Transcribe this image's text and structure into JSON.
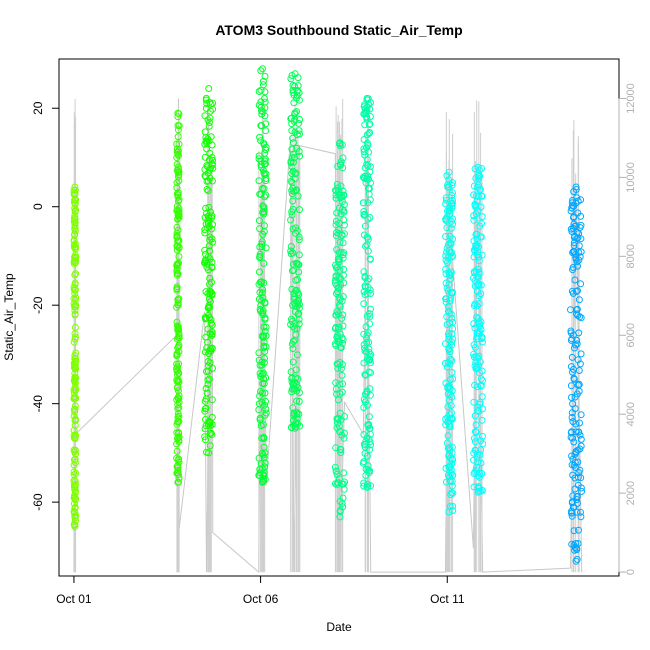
{
  "chart_data": {
    "type": "scatter",
    "title": "ATOM3 Southbound Static_Air_Temp",
    "xlabel": "Date",
    "ylabel": "Static_Air_Temp",
    "x_ticks": [
      "Oct 01",
      "Oct 06",
      "Oct 11"
    ],
    "x_tick_days": [
      1,
      6,
      11
    ],
    "xlim": [
      0.6,
      15.6
    ],
    "ylim": [
      -75,
      30
    ],
    "y_ticks": [
      -60,
      -40,
      -20,
      0,
      20
    ],
    "y2_ticks": [
      0,
      2000,
      4000,
      6000,
      8000,
      10000,
      12000
    ],
    "y2lim": [
      -100,
      13000
    ],
    "grid": false,
    "legend": "none",
    "series": [
      {
        "day_start": 1.0,
        "day_end": 1.05,
        "y_min": -65,
        "y_max": 4,
        "color": "#7fff00"
      },
      {
        "day_start": 3.75,
        "day_end": 3.82,
        "y_min": -56,
        "y_max": 19,
        "color": "#33ff00"
      },
      {
        "day_start": 4.5,
        "day_end": 4.72,
        "y_min": -50,
        "y_max": 24,
        "color": "#11ff00"
      },
      {
        "day_start": 5.95,
        "day_end": 6.15,
        "y_min": -56,
        "y_max": 28,
        "color": "#00ff33"
      },
      {
        "day_start": 6.8,
        "day_end": 7.05,
        "y_min": -45,
        "y_max": 27,
        "color": "#00ff55"
      },
      {
        "day_start": 8.0,
        "day_end": 8.25,
        "y_min": -63,
        "y_max": 13,
        "color": "#00ff88"
      },
      {
        "day_start": 8.75,
        "day_end": 8.95,
        "y_min": -57,
        "y_max": 22,
        "color": "#00ffaa"
      },
      {
        "day_start": 10.95,
        "day_end": 11.15,
        "y_min": -62,
        "y_max": 7,
        "color": "#00ffee"
      },
      {
        "day_start": 11.7,
        "day_end": 11.95,
        "y_min": -58,
        "y_max": 8,
        "color": "#00ffff"
      },
      {
        "day_start": 14.3,
        "day_end": 14.6,
        "y_min": -72,
        "y_max": 4,
        "color": "#00a8ff"
      }
    ],
    "altitude_trace": {
      "axis": "right",
      "color": "#c8c8c8",
      "points": [
        [
          1.0,
          0
        ],
        [
          1.02,
          11500
        ],
        [
          1.05,
          3500
        ],
        [
          3.75,
          6000
        ],
        [
          3.8,
          12000
        ],
        [
          3.82,
          1100
        ],
        [
          4.5,
          6600
        ],
        [
          4.55,
          0
        ],
        [
          4.7,
          10500
        ],
        [
          4.72,
          1000
        ],
        [
          5.95,
          0
        ],
        [
          6.05,
          11800
        ],
        [
          6.15,
          2200
        ],
        [
          6.8,
          11000
        ],
        [
          6.9,
          0
        ],
        [
          7.05,
          10800
        ],
        [
          8.0,
          10600
        ],
        [
          8.1,
          0
        ],
        [
          8.25,
          4300
        ],
        [
          8.75,
          3500
        ],
        [
          8.85,
          10200
        ],
        [
          8.95,
          0
        ],
        [
          10.95,
          0
        ],
        [
          11.05,
          9000
        ],
        [
          11.15,
          7800
        ],
        [
          11.7,
          600
        ],
        [
          11.8,
          9600
        ],
        [
          11.95,
          0
        ],
        [
          14.3,
          100
        ],
        [
          14.45,
          9500
        ],
        [
          14.6,
          0
        ]
      ]
    }
  }
}
